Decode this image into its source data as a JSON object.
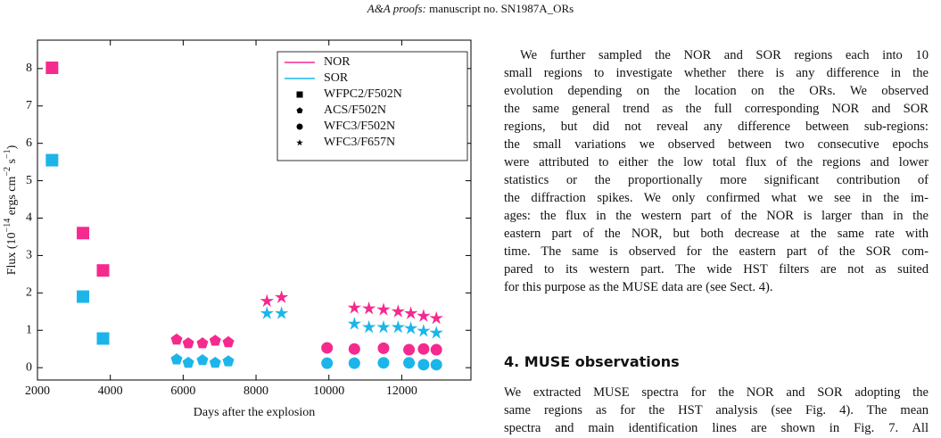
{
  "header": {
    "journal": "A&A proofs:",
    "manuscript": "manuscript no. SN1987A_ORs"
  },
  "chart_data": {
    "type": "scatter",
    "xlabel": "Days after the explosion",
    "ylabel": [
      "Flux (10",
      "−14",
      " ergs cm",
      "−2",
      " s",
      "−1",
      ")"
    ],
    "xlim": [
      2000,
      13900
    ],
    "xticks": [
      2000,
      4000,
      6000,
      8000,
      10000,
      12000
    ],
    "ylim": [
      -0.33,
      8.76
    ],
    "yticks": [
      0,
      1,
      2,
      3,
      4,
      5,
      6,
      7,
      8
    ],
    "legend": "upper right",
    "series": [
      {
        "name": "NOR",
        "color": "#f5298e"
      },
      {
        "name": "SOR",
        "color": "#1cb5ea"
      }
    ],
    "markers": [
      {
        "name": "WFPC2/F502N",
        "shape": "square"
      },
      {
        "name": "ACS/F502N",
        "shape": "pentagon"
      },
      {
        "name": "WFC3/F502N",
        "shape": "circle"
      },
      {
        "name": "WFC3/F657N",
        "shape": "star"
      }
    ],
    "data": [
      {
        "series": 0,
        "marker": 0,
        "x": [
          2400,
          3250,
          3800
        ],
        "y": [
          8.02,
          3.6,
          2.6
        ]
      },
      {
        "series": 1,
        "marker": 0,
        "x": [
          2400,
          3250,
          3800
        ],
        "y": [
          5.55,
          1.9,
          0.78
        ]
      },
      {
        "series": 0,
        "marker": 1,
        "x": [
          5820,
          6140,
          6530,
          6880,
          7240
        ],
        "y": [
          0.75,
          0.65,
          0.65,
          0.72,
          0.68
        ]
      },
      {
        "series": 1,
        "marker": 1,
        "x": [
          5820,
          6140,
          6530,
          6880,
          7240
        ],
        "y": [
          0.22,
          0.13,
          0.2,
          0.13,
          0.17
        ]
      },
      {
        "series": 0,
        "marker": 2,
        "x": [
          9950,
          10700,
          11500,
          12200,
          12600,
          12950
        ],
        "y": [
          0.53,
          0.5,
          0.52,
          0.48,
          0.5,
          0.48
        ]
      },
      {
        "series": 1,
        "marker": 2,
        "x": [
          9950,
          10700,
          11500,
          12200,
          12600,
          12950
        ],
        "y": [
          0.12,
          0.12,
          0.13,
          0.13,
          0.08,
          0.08
        ]
      },
      {
        "series": 0,
        "marker": 3,
        "x": [
          8300,
          8700,
          10700,
          11100,
          11500,
          11900,
          12250,
          12600,
          12950
        ],
        "y": [
          1.78,
          1.88,
          1.6,
          1.58,
          1.55,
          1.5,
          1.45,
          1.38,
          1.32
        ]
      },
      {
        "series": 1,
        "marker": 3,
        "x": [
          8300,
          8700,
          10700,
          11100,
          11500,
          11900,
          12250,
          12600,
          12950
        ],
        "y": [
          1.45,
          1.45,
          1.17,
          1.08,
          1.08,
          1.08,
          1.05,
          0.98,
          0.93
        ]
      }
    ]
  },
  "body": {
    "paragraph1": [
      "We further sampled the NOR and SOR regions each into 10",
      "small regions to investigate whether there is any difference in the",
      "evolution depending on the location on the ORs. We observed",
      "the same general trend as the full corresponding NOR and SOR",
      "regions, but did not reveal any difference between sub-regions:",
      "the small variations we observed between two consecutive epochs",
      "were attributed to either the low total flux of the regions and lower",
      "statistics or the proportionally more significant contribution of",
      "the diffraction spikes. We only confirmed what we see in the im-",
      "ages: the flux in the western part of the NOR is larger than in the",
      "eastern part of the NOR, but both decrease at the same rate with",
      "time. The same is observed for the eastern part of the SOR com-",
      "pared to its western part. The wide HST filters are not as suited",
      "for this purpose as the MUSE data are (see Sect. 4)."
    ],
    "heading": "4. MUSE observations",
    "paragraph2": [
      "We extracted MUSE spectra for the NOR and SOR adopting the",
      "same regions as for the HST analysis (see Fig. 4). The mean",
      "spectra and main identification lines are shown in Fig. 7. All"
    ]
  }
}
